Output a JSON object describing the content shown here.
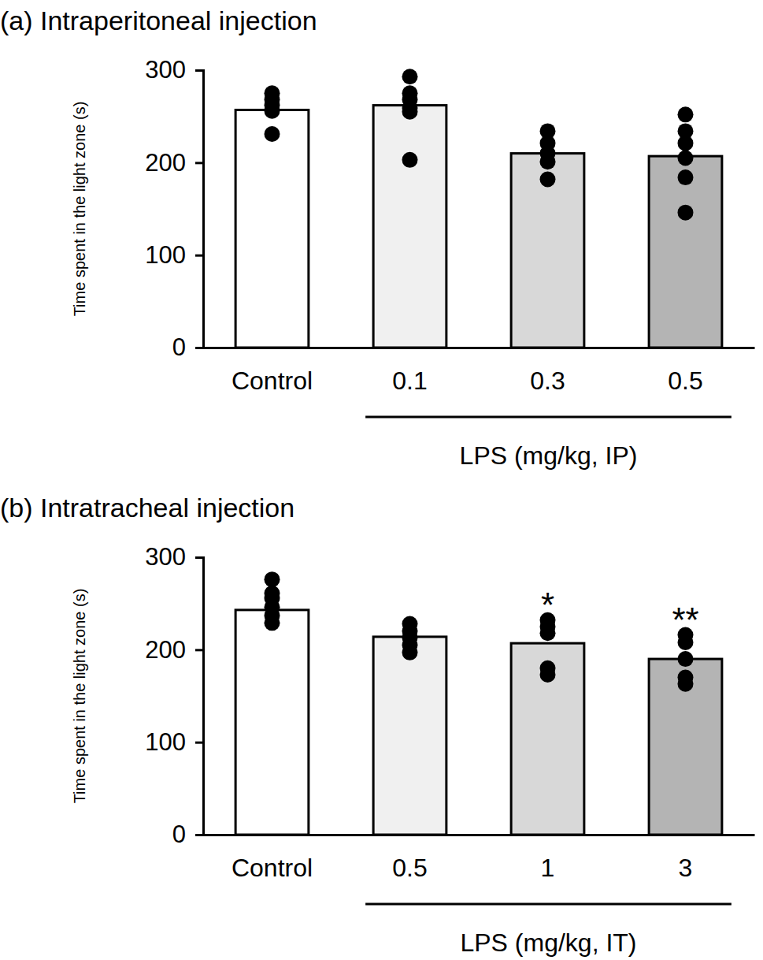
{
  "chart_data": [
    {
      "type": "bar",
      "title": "(a) Intraperitoneal injection",
      "categories": [
        "Control",
        "0.1",
        "0.3",
        "0.5"
      ],
      "values": [
        257,
        262,
        210,
        207
      ],
      "points": [
        [
          275,
          268,
          262,
          256,
          231
        ],
        [
          293,
          275,
          268,
          259,
          255,
          203
        ],
        [
          234,
          221,
          210,
          201,
          182
        ],
        [
          252,
          234,
          221,
          205,
          184,
          146
        ]
      ],
      "colors": [
        "#ffffff",
        "#f0f0f0",
        "#d8d8d8",
        "#b4b4b4"
      ],
      "xlabel": "LPS (mg/kg, IP)",
      "ylabel": "Time spent in the light zone (s)",
      "ylim": [
        0,
        300
      ],
      "yticks": [
        0,
        100,
        200,
        300
      ]
    },
    {
      "type": "bar",
      "title": "(b) Intratracheal injection",
      "categories": [
        "Control",
        "0.5",
        "1",
        "3"
      ],
      "values": [
        243,
        214,
        207,
        190
      ],
      "points": [
        [
          276,
          261,
          256,
          246,
          237,
          229
        ],
        [
          228,
          220,
          213,
          205,
          197
        ],
        [
          232,
          225,
          218,
          180,
          173
        ],
        [
          216,
          208,
          190,
          170,
          163
        ]
      ],
      "colors": [
        "#ffffff",
        "#f0f0f0",
        "#d8d8d8",
        "#b4b4b4"
      ],
      "xlabel": "LPS (mg/kg, IT)",
      "ylabel": "Time spent in the light zone (s)",
      "ylim": [
        0,
        300
      ],
      "yticks": [
        0,
        100,
        200,
        300
      ],
      "annotations": [
        {
          "category": "1",
          "text": "*"
        },
        {
          "category": "3",
          "text": "**"
        }
      ]
    }
  ]
}
